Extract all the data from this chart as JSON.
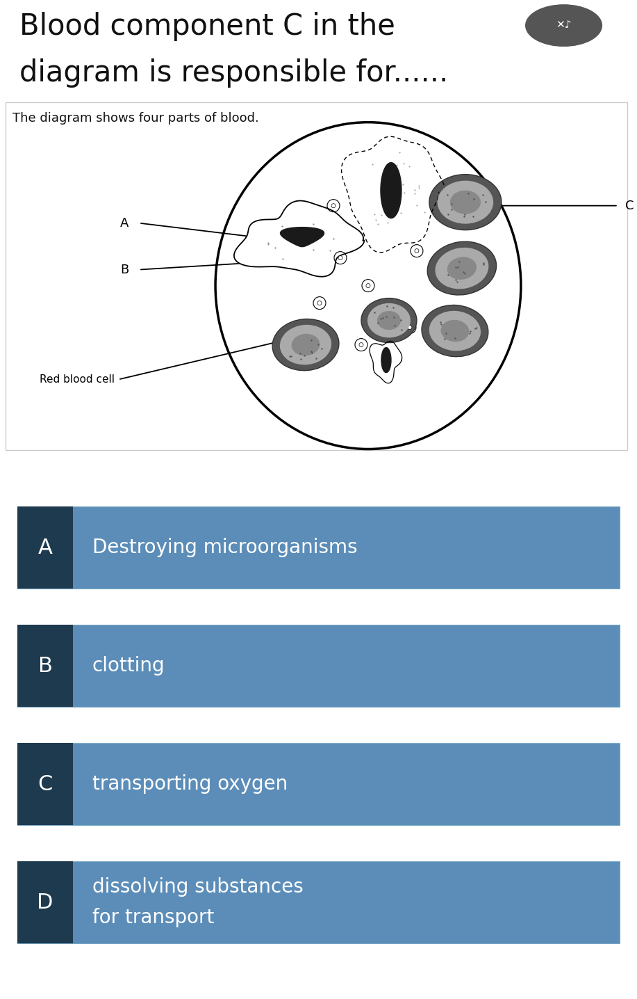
{
  "title_line1": "Blood component C in the",
  "title_line2": "diagram is responsible for......",
  "subtitle": "The diagram shows four parts of blood.",
  "bg_color": "#ffffff",
  "answer_bg": "#5b8db8",
  "answer_label_bg": "#1e3a4f",
  "answer_text_color": "#ffffff",
  "options": [
    {
      "label": "A",
      "text": "Destroying microorganisms"
    },
    {
      "label": "B",
      "text": "clotting"
    },
    {
      "label": "C",
      "text": "transporting oxygen"
    },
    {
      "label": "D",
      "text": "dissolving substances\nfor transport"
    }
  ],
  "title_fontsize": 30,
  "subtitle_fontsize": 13,
  "option_label_fontsize": 22,
  "option_text_fontsize": 20
}
